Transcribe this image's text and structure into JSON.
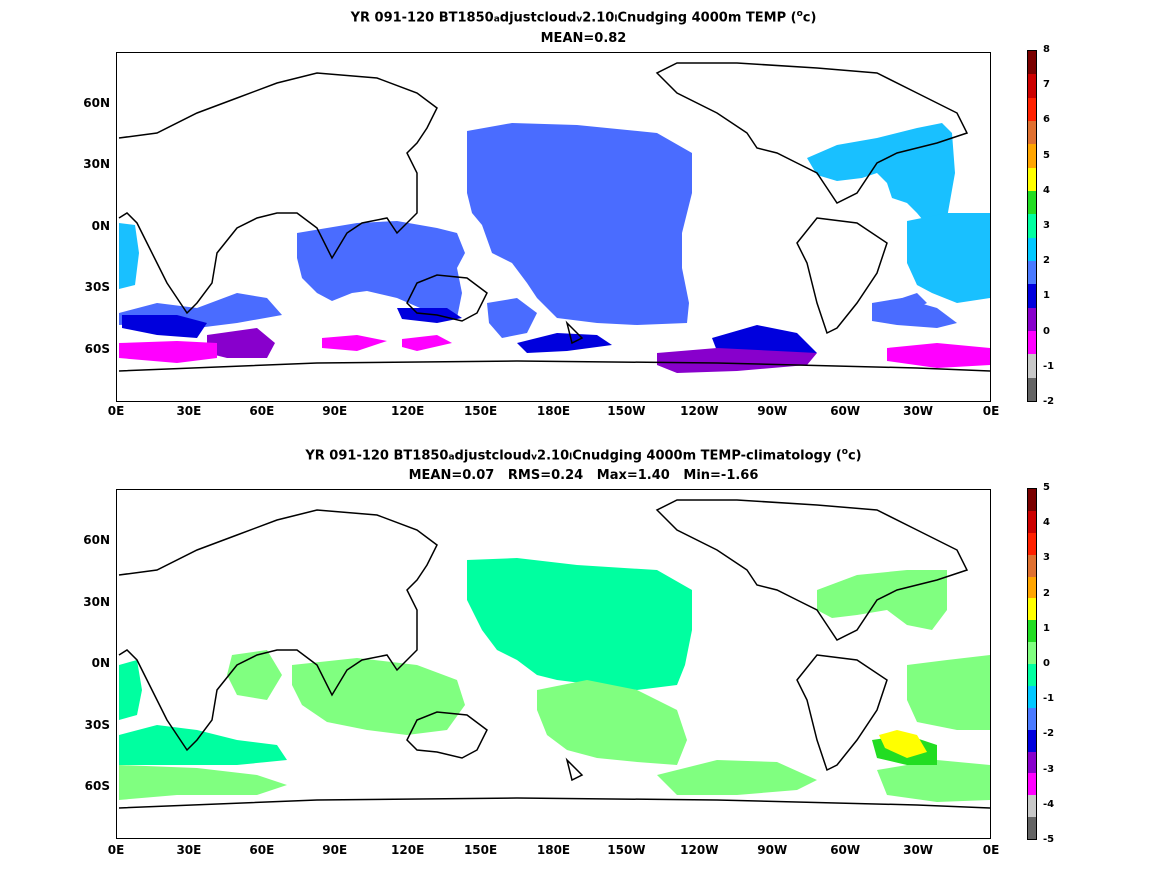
{
  "panel1": {
    "title_prefix": "YR 091-120 BT1850",
    "title_sub_a": "a",
    "title_mid": "djustcloud",
    "title_sub_v": "v",
    "title_mid2": "2.10",
    "title_sub_l": "l",
    "title_suffix": "Cnudging 4000m TEMP (",
    "title_deg": "o",
    "title_unit_end": "c)",
    "stats": "MEAN=0.82",
    "colorbar_ticks": [
      "8",
      "7",
      "6",
      "5",
      "4",
      "3",
      "2",
      "1",
      "0",
      "-1",
      "-2"
    ],
    "colorbar_colors": [
      "#7a0000",
      "#cc0000",
      "#ff2000",
      "#e07030",
      "#ffa500",
      "#ffff00",
      "#22dd22",
      "#00ffa0",
      "#00c8ff",
      "#4a7aff",
      "#0000dd",
      "#8800cc",
      "#ff00ff",
      "#c8c8c8",
      "#646464"
    ]
  },
  "panel2": {
    "title_prefix": "YR 091-120 BT1850",
    "title_sub_a": "a",
    "title_mid": "djustcloud",
    "title_sub_v": "v",
    "title_mid2": "2.10",
    "title_sub_l": "l",
    "title_suffix": "Cnudging 4000m TEMP-climatology (",
    "title_deg": "o",
    "title_unit_end": "c)",
    "stats": "MEAN=0.07   RMS=0.24   Max=1.40   Min=-1.66",
    "colorbar_ticks": [
      "5",
      "4",
      "3",
      "2",
      "1",
      "0",
      "-1",
      "-2",
      "-3",
      "-4",
      "-5"
    ],
    "colorbar_colors": [
      "#7a0000",
      "#cc0000",
      "#ff2000",
      "#e07030",
      "#ffa500",
      "#ffff00",
      "#22dd22",
      "#80ff80",
      "#00ffa0",
      "#00c8ff",
      "#4a7aff",
      "#0000dd",
      "#8800cc",
      "#ff00ff",
      "#c8c8c8",
      "#646464"
    ]
  },
  "axes": {
    "y_ticks": [
      "60N",
      "30N",
      "0N",
      "30S",
      "60S"
    ],
    "x_ticks": [
      "0E",
      "30E",
      "60E",
      "90E",
      "120E",
      "150E",
      "180E",
      "150W",
      "120W",
      "90W",
      "60W",
      "30W",
      "0E"
    ]
  },
  "colors": {
    "blue_fill": "#4a6cff",
    "cyan_fill": "#19c0ff",
    "dark_blue": "#0000dd",
    "purple": "#8800cc",
    "magenta": "#ff00ff",
    "mint": "#00ffa0",
    "light_green": "#80ff80",
    "green": "#22dd22",
    "yellow": "#ffff00",
    "coast": "#000000"
  }
}
